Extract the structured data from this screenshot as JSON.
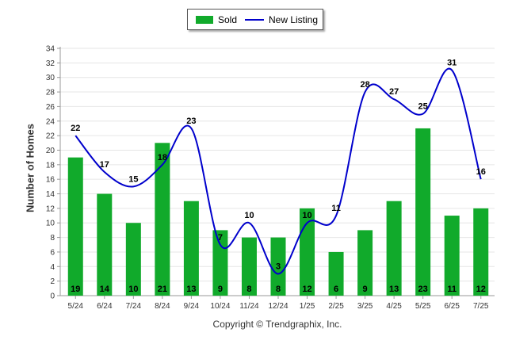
{
  "legend": {
    "sold_label": "Sold",
    "new_listing_label": "New Listing"
  },
  "ylabel": "Number of Homes",
  "copyright": "Copyright © Trendgraphix, Inc.",
  "colors": {
    "sold": "#11aa2b",
    "new_listing": "#0000cc"
  },
  "chart_data": {
    "type": "bar",
    "title": "",
    "xlabel": "",
    "ylabel": "Number of Homes",
    "ylim": [
      0,
      34
    ],
    "yticks": [
      0,
      2,
      4,
      6,
      8,
      10,
      12,
      14,
      16,
      18,
      20,
      22,
      24,
      26,
      28,
      30,
      32,
      34
    ],
    "grid": true,
    "legend_position": "top-center",
    "categories": [
      "5/24",
      "6/24",
      "7/24",
      "8/24",
      "9/24",
      "10/24",
      "11/24",
      "12/24",
      "1/25",
      "2/25",
      "3/25",
      "4/25",
      "5/25",
      "6/25",
      "7/25"
    ],
    "series": [
      {
        "name": "Sold",
        "type": "bar",
        "values": [
          19,
          14,
          10,
          21,
          13,
          9,
          8,
          8,
          12,
          6,
          9,
          13,
          23,
          11,
          12
        ]
      },
      {
        "name": "New Listing",
        "type": "line",
        "values": [
          22,
          17,
          15,
          18,
          23,
          7,
          10,
          3,
          10,
          11,
          28,
          27,
          25,
          31,
          16
        ]
      }
    ]
  }
}
